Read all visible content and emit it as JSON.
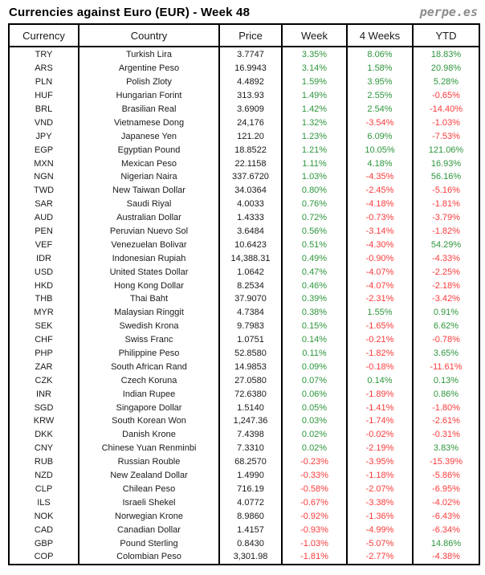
{
  "header": {
    "title": "Currencies against Euro (EUR) - Week 48",
    "logo": "perpe.es"
  },
  "colors": {
    "positive": "#2e963d",
    "negative": "#fb3b3b",
    "text": "#1a1a1a",
    "border": "#000000",
    "logo_gray": "#8c8c8c"
  },
  "chart_data": {
    "type": "table",
    "title": "Currencies against Euro (EUR) - Week 48",
    "columns": [
      "Currency",
      "Country",
      "Price",
      "Week",
      "4 Weeks",
      "YTD"
    ],
    "rows": [
      [
        "TRY",
        "Turkish Lira",
        "3.7747",
        "3.35%",
        "8.06%",
        "18.83%"
      ],
      [
        "ARS",
        "Argentine Peso",
        "16.9943",
        "3.14%",
        "1.58%",
        "20.98%"
      ],
      [
        "PLN",
        "Polish Zloty",
        "4.4892",
        "1.59%",
        "3.95%",
        "5.28%"
      ],
      [
        "HUF",
        "Hungarian Forint",
        "313.93",
        "1.49%",
        "2.55%",
        "-0.65%"
      ],
      [
        "BRL",
        "Brasilian Real",
        "3.6909",
        "1.42%",
        "2.54%",
        "-14.40%"
      ],
      [
        "VND",
        "Vietnamese Dong",
        "24,176",
        "1.32%",
        "-3.54%",
        "-1.03%"
      ],
      [
        "JPY",
        "Japanese Yen",
        "121.20",
        "1.23%",
        "6.09%",
        "-7.53%"
      ],
      [
        "EGP",
        "Egyptian Pound",
        "18.8522",
        "1.21%",
        "10.05%",
        "121.06%"
      ],
      [
        "MXN",
        "Mexican Peso",
        "22.1158",
        "1.11%",
        "4.18%",
        "16.93%"
      ],
      [
        "NGN",
        "Nigerian Naira",
        "337.6720",
        "1.03%",
        "-4.35%",
        "56.16%"
      ],
      [
        "TWD",
        "New Taiwan Dollar",
        "34.0364",
        "0.80%",
        "-2.45%",
        "-5.16%"
      ],
      [
        "SAR",
        "Saudi Riyal",
        "4.0033",
        "0.76%",
        "-4.18%",
        "-1.81%"
      ],
      [
        "AUD",
        "Australian Dollar",
        "1.4333",
        "0.72%",
        "-0.73%",
        "-3.79%"
      ],
      [
        "PEN",
        "Peruvian Nuevo Sol",
        "3.6484",
        "0.56%",
        "-3.14%",
        "-1.82%"
      ],
      [
        "VEF",
        "Venezuelan Bolivar",
        "10.6423",
        "0.51%",
        "-4.30%",
        "54.29%"
      ],
      [
        "IDR",
        "Indonesian Rupiah",
        "14,388.31",
        "0.49%",
        "-0.90%",
        "-4.33%"
      ],
      [
        "USD",
        "United States Dollar",
        "1.0642",
        "0.47%",
        "-4.07%",
        "-2.25%"
      ],
      [
        "HKD",
        "Hong Kong Dollar",
        "8.2534",
        "0.46%",
        "-4.07%",
        "-2.18%"
      ],
      [
        "THB",
        "Thai Baht",
        "37.9070",
        "0.39%",
        "-2.31%",
        "-3.42%"
      ],
      [
        "MYR",
        "Malaysian Ringgit",
        "4.7384",
        "0.38%",
        "1.55%",
        "0.91%"
      ],
      [
        "SEK",
        "Swedish Krona",
        "9.7983",
        "0.15%",
        "-1.65%",
        "6.62%"
      ],
      [
        "CHF",
        "Swiss Franc",
        "1.0751",
        "0.14%",
        "-0.21%",
        "-0.78%"
      ],
      [
        "PHP",
        "Philippine Peso",
        "52.8580",
        "0.11%",
        "-1.82%",
        "3.65%"
      ],
      [
        "ZAR",
        "South African Rand",
        "14.9853",
        "0.09%",
        "-0.18%",
        "-11.61%"
      ],
      [
        "CZK",
        "Czech Koruna",
        "27.0580",
        "0.07%",
        "0.14%",
        "0.13%"
      ],
      [
        "INR",
        "Indian Rupee",
        "72.6380",
        "0.06%",
        "-1.89%",
        "0.86%"
      ],
      [
        "SGD",
        "Singapore Dollar",
        "1.5140",
        "0.05%",
        "-1.41%",
        "-1.80%"
      ],
      [
        "KRW",
        "South Korean Won",
        "1,247.36",
        "0.03%",
        "-1.74%",
        "-2.61%"
      ],
      [
        "DKK",
        "Danish Krone",
        "7.4398",
        "0.02%",
        "-0.02%",
        "-0.31%"
      ],
      [
        "CNY",
        "Chinese Yuan Renminbi",
        "7.3310",
        "0.02%",
        "-2.19%",
        "3.83%"
      ],
      [
        "RUB",
        "Russian Rouble",
        "68.2570",
        "-0.23%",
        "-3.95%",
        "-15.39%"
      ],
      [
        "NZD",
        "New Zealand Dollar",
        "1.4990",
        "-0.33%",
        "-1.18%",
        "-5.86%"
      ],
      [
        "CLP",
        "Chilean Peso",
        "716.19",
        "-0.58%",
        "-2.07%",
        "-6.95%"
      ],
      [
        "ILS",
        "Israeli Shekel",
        "4.0772",
        "-0.67%",
        "-3.38%",
        "-4.02%"
      ],
      [
        "NOK",
        "Norwegian Krone",
        "8.9860",
        "-0.92%",
        "-1.36%",
        "-6.43%"
      ],
      [
        "CAD",
        "Canadian Dollar",
        "1.4157",
        "-0.93%",
        "-4.99%",
        "-6.34%"
      ],
      [
        "GBP",
        "Pound Sterling",
        "0.8430",
        "-1.03%",
        "-5.07%",
        "14.86%"
      ],
      [
        "COP",
        "Colombian Peso",
        "3,301.98",
        "-1.81%",
        "-2.77%",
        "-4.38%"
      ]
    ],
    "notes": "Columns Week, 4 Weeks, YTD are percentage changes: green when positive, red when negative. Price column is the currency rate vs EUR."
  }
}
